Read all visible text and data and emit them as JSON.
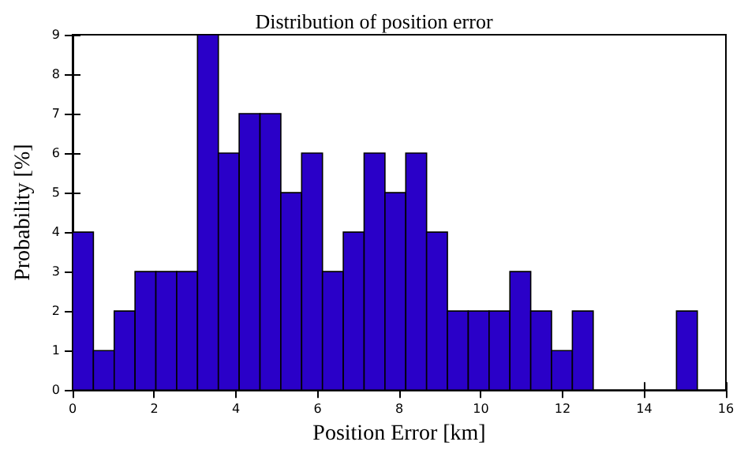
{
  "chart_data": {
    "type": "histogram",
    "title": "Distribution of position error",
    "xlabel": "Position Error [km]",
    "ylabel": "Probability [%]",
    "bins": [
      0,
      0.51,
      1.02,
      1.53,
      2.04,
      2.55,
      3.06,
      3.57,
      4.08,
      4.59,
      5.1,
      5.61,
      6.12,
      6.63,
      7.14,
      7.65,
      8.16,
      8.67,
      9.18,
      9.69,
      10.2,
      10.71,
      11.22,
      11.73,
      12.24,
      12.75,
      13.26,
      13.77,
      14.28,
      14.79,
      15.3
    ],
    "values": [
      4,
      1,
      2,
      3,
      3,
      3,
      9,
      6,
      7,
      7,
      5,
      6,
      3,
      4,
      6,
      5,
      6,
      4,
      2,
      2,
      2,
      3,
      2,
      1,
      2,
      0,
      0,
      0,
      0,
      2
    ],
    "color": "#2a00c8",
    "xlim": [
      0,
      16
    ],
    "xticks": [
      0,
      2,
      4,
      6,
      8,
      10,
      12,
      14,
      16
    ],
    "ylim": [
      0,
      9
    ],
    "yticks": [
      0,
      1,
      2,
      3,
      4,
      5,
      6,
      7,
      8,
      9
    ],
    "grid": false
  }
}
